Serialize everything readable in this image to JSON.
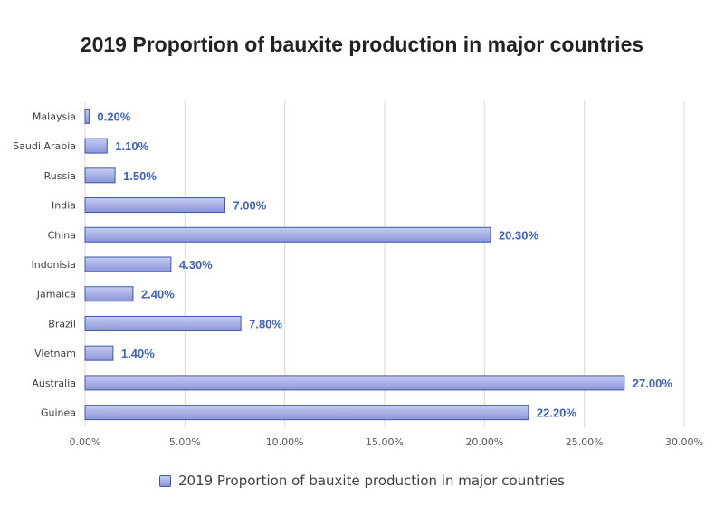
{
  "chart_data": {
    "type": "bar",
    "orientation": "horizontal",
    "title": "2019 Proportion of bauxite production in major countries",
    "categories": [
      "Malaysia",
      "Saudi Arabia",
      "Russia",
      "India",
      "China",
      "Indonisia",
      "Jamaica",
      "Brazil",
      "Vietnam",
      "Australia",
      "Guinea"
    ],
    "series": [
      {
        "name": "2019 Proportion of bauxite production in major countries",
        "values": [
          0.2,
          1.1,
          1.5,
          7.0,
          20.3,
          4.3,
          2.4,
          7.8,
          1.4,
          27.0,
          22.2
        ],
        "data_labels": [
          "0.20%",
          "1.10%",
          "1.50%",
          "7.00%",
          "20.30%",
          "4.30%",
          "2.40%",
          "7.80%",
          "1.40%",
          "27.00%",
          "22.20%"
        ]
      }
    ],
    "xlim": [
      0,
      30
    ],
    "x_ticks": [
      "0.00%",
      "5.00%",
      "10.00%",
      "15.00%",
      "20.00%",
      "25.00%",
      "30.00%"
    ],
    "xlabel": "",
    "ylabel": "",
    "grid": "vertical",
    "legend_position": "bottom",
    "colors": {
      "bar_fill_top": "#c7cdf0",
      "bar_fill_bottom": "#8a95db",
      "bar_stroke": "#3c5aa8",
      "data_label": "#3f63c0",
      "grid": "#d9d9d9"
    }
  }
}
